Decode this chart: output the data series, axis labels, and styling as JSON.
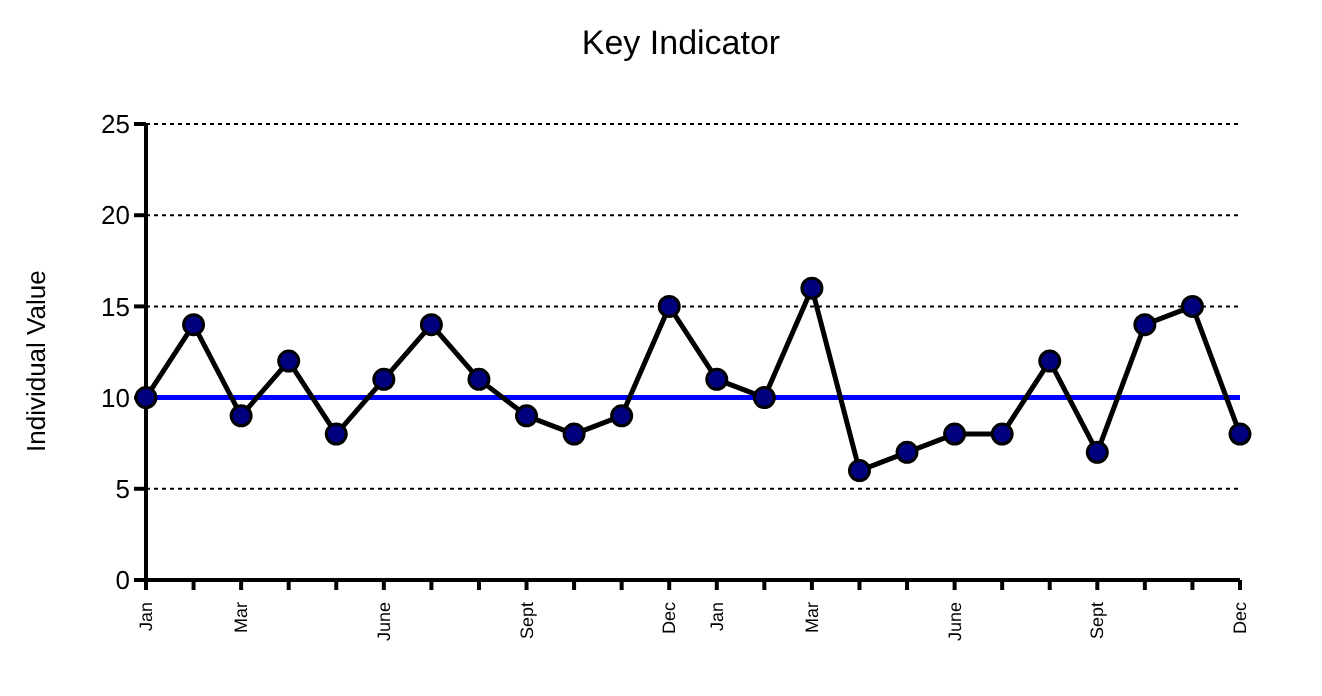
{
  "chart_data": {
    "type": "line",
    "title": "Key Indicator",
    "ylabel": "Individual Value",
    "categories": [
      "Jan",
      null,
      "Mar",
      null,
      null,
      "June",
      null,
      null,
      "Sept",
      null,
      null,
      "Dec",
      "Jan",
      null,
      "Mar",
      null,
      null,
      "June",
      null,
      null,
      "Sept",
      null,
      null,
      "Dec"
    ],
    "series": [
      {
        "color": "#000000",
        "values": [
          10,
          14,
          9,
          12,
          8,
          11,
          14,
          11,
          9,
          8,
          9,
          15,
          11,
          10,
          16,
          6,
          7,
          8,
          8,
          12,
          7,
          14,
          15,
          8
        ]
      }
    ],
    "ylim": [
      0,
      25
    ],
    "yticks": [
      0,
      5,
      10,
      15,
      20,
      25
    ],
    "grid": "y",
    "marker": "circle",
    "line_style": "solid",
    "legend": false,
    "ref_lines": [
      {
        "axis": "y",
        "value": 10,
        "color": "#0000ff"
      }
    ]
  }
}
